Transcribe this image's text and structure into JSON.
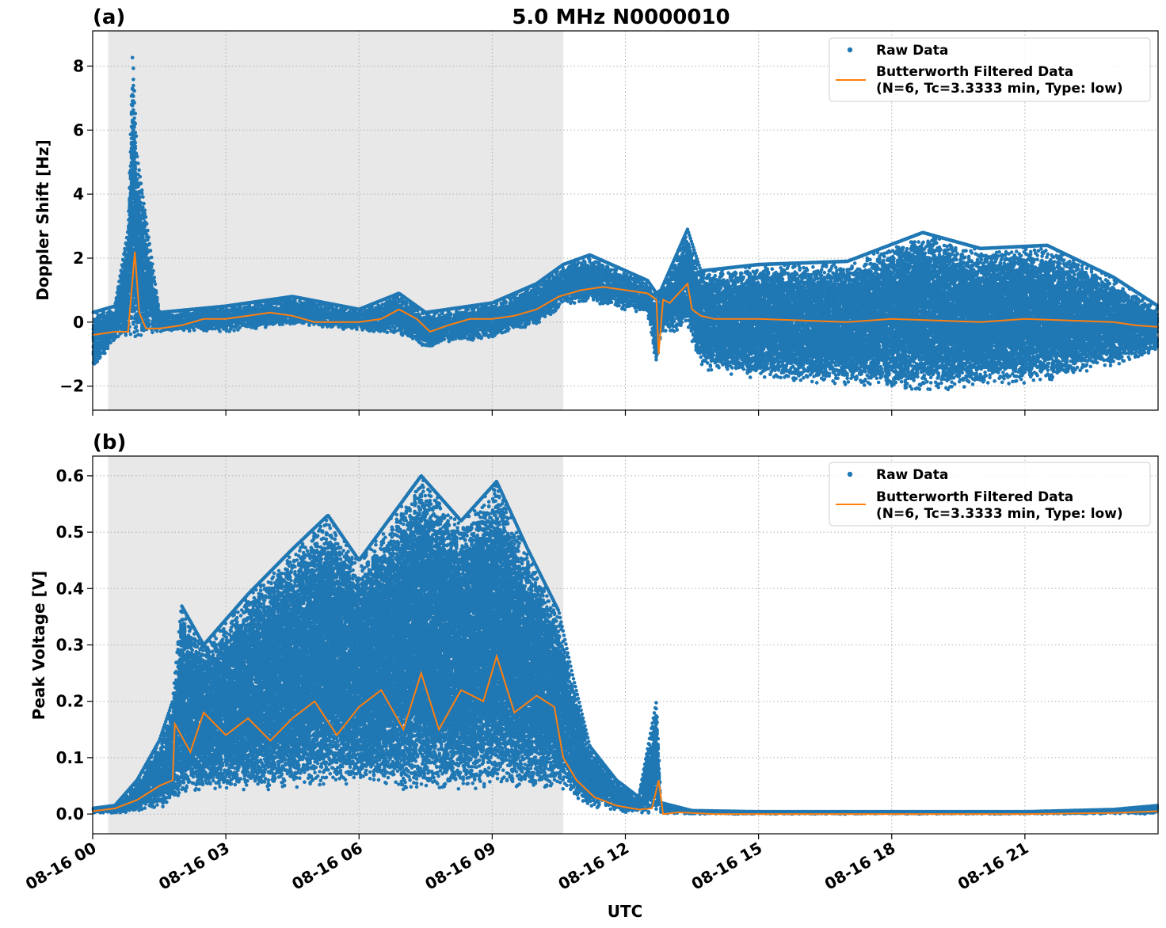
{
  "figure": {
    "title": "5.0 MHz N0000010",
    "xlabel": "UTC"
  },
  "colors": {
    "raw": "#1f77b4",
    "filtered": "#ff7f0e",
    "shade": "#e8e8e8",
    "grid": "#b0b0b0"
  },
  "chart_data": [
    {
      "panel_label": "(a)",
      "type": "scatter",
      "title": "5.0 MHz N0000010",
      "ylabel": "Doppler Shift [Hz]",
      "xlabel": "",
      "x_unit": "hours UTC on 08-16",
      "xlim": [
        0,
        24
      ],
      "ylim": [
        -2.75,
        9.1
      ],
      "yticks": [
        -2,
        0,
        2,
        4,
        6,
        8
      ],
      "ytick_labels": [
        "−2",
        "0",
        "2",
        "4",
        "6",
        "8"
      ],
      "grid": true,
      "legend_position": "top-right",
      "legend": [
        "Raw Data",
        "Butterworth Filtered Data",
        "(N=6, Tc=3.3333 min, Type: low)"
      ],
      "shaded_x_range": [
        0.35,
        10.6
      ],
      "series": [
        {
          "name": "Raw Data",
          "style": "points",
          "envelope_x": [
            0,
            0.5,
            0.8,
            0.9,
            1.0,
            1.5,
            3,
            4.5,
            6.0,
            6.9,
            7.5,
            9,
            10,
            10.6,
            11.2,
            12.5,
            12.7,
            12.8,
            13.4,
            13.7,
            15,
            17,
            18.7,
            20,
            21.5,
            23,
            24
          ],
          "envelope_low": [
            -1.6,
            -0.6,
            -0.6,
            -0.6,
            -0.5,
            -0.3,
            -0.3,
            -0.1,
            -0.3,
            -0.4,
            -0.8,
            -0.5,
            -0.1,
            0.5,
            0.6,
            0.2,
            -1.4,
            -0.4,
            -0.2,
            -1.5,
            -1.8,
            -2.0,
            -2.2,
            -2.0,
            -1.9,
            -1.4,
            -0.9
          ],
          "envelope_high": [
            0.3,
            0.5,
            2.9,
            8.5,
            5.2,
            0.3,
            0.5,
            0.8,
            0.4,
            0.9,
            0.3,
            0.6,
            1.2,
            1.8,
            2.1,
            1.3,
            0.9,
            1.0,
            2.9,
            1.6,
            1.8,
            1.9,
            2.8,
            2.3,
            2.4,
            1.4,
            0.5
          ]
        },
        {
          "name": "Butterworth Filtered Data",
          "style": "line",
          "x": [
            0,
            0.5,
            0.8,
            0.95,
            1.05,
            1.2,
            1.5,
            2,
            2.5,
            3,
            3.5,
            4,
            4.5,
            5,
            5.5,
            6,
            6.5,
            6.9,
            7.3,
            7.6,
            8,
            8.5,
            9,
            9.5,
            10,
            10.5,
            11,
            11.5,
            12,
            12.5,
            12.7,
            12.75,
            12.85,
            13,
            13.4,
            13.5,
            13.7,
            14,
            15,
            16,
            17,
            18,
            19,
            20,
            21,
            22,
            23,
            23.5,
            24
          ],
          "y": [
            -0.4,
            -0.3,
            -0.3,
            2.2,
            0.3,
            -0.2,
            -0.2,
            -0.1,
            0.1,
            0.1,
            0.2,
            0.3,
            0.2,
            0.0,
            0.0,
            0.0,
            0.1,
            0.4,
            0.1,
            -0.3,
            -0.1,
            0.1,
            0.1,
            0.2,
            0.4,
            0.8,
            1.0,
            1.1,
            1.0,
            0.9,
            0.7,
            -1.0,
            0.7,
            0.6,
            1.2,
            0.4,
            0.2,
            0.1,
            0.1,
            0.05,
            0.0,
            0.1,
            0.05,
            0.0,
            0.1,
            0.05,
            0.0,
            -0.1,
            -0.15
          ]
        }
      ]
    },
    {
      "panel_label": "(b)",
      "type": "scatter",
      "title": "",
      "ylabel": "Peak Voltage [V]",
      "xlabel": "UTC",
      "x_unit": "hours UTC on 08-16",
      "xlim": [
        0,
        24
      ],
      "ylim": [
        -0.035,
        0.635
      ],
      "yticks": [
        0.0,
        0.1,
        0.2,
        0.3,
        0.4,
        0.5,
        0.6
      ],
      "ytick_labels": [
        "0.0",
        "0.1",
        "0.2",
        "0.3",
        "0.4",
        "0.5",
        "0.6"
      ],
      "xticks": [
        0,
        3,
        6,
        9,
        12,
        15,
        18,
        21
      ],
      "xtick_labels": [
        "08-16 00",
        "08-16 03",
        "08-16 06",
        "08-16 09",
        "08-16 12",
        "08-16 15",
        "08-16 18",
        "08-16 21"
      ],
      "grid": true,
      "legend_position": "top-right",
      "legend": [
        "Raw Data",
        "Butterworth Filtered Data",
        "(N=6, Tc=3.3333 min, Type: low)"
      ],
      "shaded_x_range": [
        0.35,
        10.6
      ],
      "series": [
        {
          "name": "Raw Data",
          "style": "points",
          "envelope_x": [
            0,
            0.5,
            1.0,
            1.5,
            1.8,
            2.0,
            2.5,
            3.5,
            4.5,
            5.3,
            6,
            7.4,
            8.3,
            9.1,
            9.8,
            10.5,
            10.8,
            11.2,
            11.8,
            12.3,
            12.7,
            12.8,
            13.5,
            15,
            18,
            21,
            23,
            24
          ],
          "envelope_low": [
            0.0,
            0.0,
            0.005,
            0.01,
            0.02,
            0.03,
            0.04,
            0.04,
            0.04,
            0.05,
            0.05,
            0.04,
            0.04,
            0.05,
            0.04,
            0.05,
            0.03,
            0.01,
            0.005,
            0.0,
            0.0,
            0.0,
            0.0,
            0.0,
            0.0,
            0.0,
            0.0,
            0.0
          ],
          "envelope_high": [
            0.01,
            0.015,
            0.06,
            0.13,
            0.2,
            0.37,
            0.3,
            0.39,
            0.47,
            0.53,
            0.45,
            0.6,
            0.52,
            0.59,
            0.47,
            0.36,
            0.25,
            0.12,
            0.06,
            0.03,
            0.2,
            0.02,
            0.006,
            0.004,
            0.004,
            0.004,
            0.008,
            0.015
          ]
        },
        {
          "name": "Butterworth Filtered Data",
          "style": "line",
          "x": [
            0,
            0.5,
            1.0,
            1.5,
            1.8,
            1.85,
            2.2,
            2.5,
            3.0,
            3.5,
            4.0,
            4.5,
            5.0,
            5.5,
            6.0,
            6.5,
            7.0,
            7.4,
            7.8,
            8.3,
            8.8,
            9.1,
            9.5,
            10.0,
            10.4,
            10.6,
            10.9,
            11.3,
            11.8,
            12.3,
            12.6,
            12.75,
            12.85,
            13.2,
            14,
            18,
            21,
            23,
            24
          ],
          "y": [
            0.005,
            0.01,
            0.025,
            0.05,
            0.06,
            0.16,
            0.11,
            0.18,
            0.14,
            0.17,
            0.13,
            0.17,
            0.2,
            0.14,
            0.19,
            0.22,
            0.15,
            0.25,
            0.15,
            0.22,
            0.2,
            0.28,
            0.18,
            0.21,
            0.19,
            0.1,
            0.06,
            0.03,
            0.015,
            0.008,
            0.01,
            0.06,
            0.0,
            0.003,
            0.0,
            0.0,
            0.0,
            0.002,
            0.005
          ]
        }
      ]
    }
  ]
}
